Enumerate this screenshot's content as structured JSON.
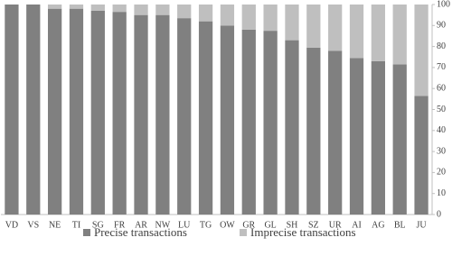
{
  "chart_data": {
    "type": "stacked_bar",
    "categories": [
      "VD",
      "VS",
      "NE",
      "TI",
      "SG",
      "FR",
      "AR",
      "NW",
      "LU",
      "TG",
      "OW",
      "GR",
      "GL",
      "SH",
      "SZ",
      "UR",
      "AI",
      "AG",
      "BL",
      "JU"
    ],
    "series": [
      {
        "name": "Precise transactions",
        "color": "#808080",
        "values": [
          100,
          100,
          98,
          98,
          97,
          96.5,
          95,
          95,
          93.5,
          92,
          90,
          88,
          87.5,
          83,
          79.5,
          78,
          74.5,
          73,
          71.5,
          56.5
        ]
      },
      {
        "name": "Imprecise transactions",
        "color": "#bfbfbf",
        "values": [
          0,
          0,
          2,
          2,
          3,
          3.5,
          5,
          5,
          6.5,
          8,
          10,
          12,
          12.5,
          17,
          20.5,
          22,
          25.5,
          27,
          28.5,
          43.5
        ]
      }
    ],
    "ylim": [
      0,
      100
    ],
    "yticks": [
      0,
      10,
      20,
      30,
      40,
      50,
      60,
      70,
      80,
      90,
      100
    ],
    "legend": "bottom"
  }
}
